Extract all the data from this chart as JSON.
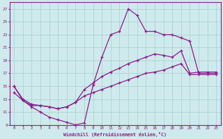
{
  "xlabel": "Windchill (Refroidissement éolien,°C)",
  "bg_color": "#ceeaec",
  "grid_color": "#aaccce",
  "line_color": "#8b1a8b",
  "xlim": [
    -0.5,
    23.5
  ],
  "ylim": [
    9,
    28
  ],
  "xticks": [
    0,
    1,
    2,
    3,
    4,
    5,
    6,
    7,
    8,
    9,
    10,
    11,
    12,
    13,
    14,
    15,
    16,
    17,
    18,
    19,
    20,
    21,
    22,
    23
  ],
  "yticks": [
    9,
    11,
    13,
    15,
    17,
    19,
    21,
    23,
    25,
    27
  ],
  "line1_x": [
    0,
    1,
    2,
    3,
    4,
    5,
    6,
    7,
    8,
    9,
    10,
    11,
    12,
    13,
    14,
    15,
    16,
    17,
    18,
    19,
    20,
    21,
    22,
    23
  ],
  "line1_y": [
    15,
    12.8,
    11.8,
    11.0,
    10.2,
    9.8,
    9.4,
    9.0,
    9.3,
    15.2,
    19.5,
    23.0,
    23.5,
    27.0,
    26.0,
    23.5,
    23.5,
    23.0,
    23.0,
    22.5,
    22.0,
    17.0,
    17.0,
    17.0
  ],
  "line2_x": [
    0,
    1,
    2,
    3,
    4,
    5,
    6,
    7,
    8,
    9,
    10,
    11,
    12,
    13,
    14,
    15,
    16,
    17,
    18,
    19,
    20,
    21,
    22,
    23
  ],
  "line2_y": [
    15.0,
    13.0,
    12.2,
    12.0,
    11.8,
    11.5,
    11.8,
    12.5,
    14.5,
    15.5,
    16.5,
    17.2,
    17.8,
    18.5,
    19.0,
    19.5,
    20.0,
    19.8,
    19.5,
    20.5,
    17.0,
    17.2,
    17.2,
    17.2
  ],
  "line3_x": [
    0,
    1,
    2,
    3,
    4,
    5,
    6,
    7,
    8,
    9,
    10,
    11,
    12,
    13,
    14,
    15,
    16,
    17,
    18,
    19,
    20,
    21,
    22,
    23
  ],
  "line3_y": [
    14.0,
    12.8,
    12.0,
    12.0,
    11.8,
    11.5,
    11.8,
    12.5,
    13.5,
    14.0,
    14.5,
    15.0,
    15.5,
    16.0,
    16.5,
    17.0,
    17.2,
    17.5,
    18.0,
    18.5,
    16.8,
    16.8,
    16.8,
    16.8
  ]
}
